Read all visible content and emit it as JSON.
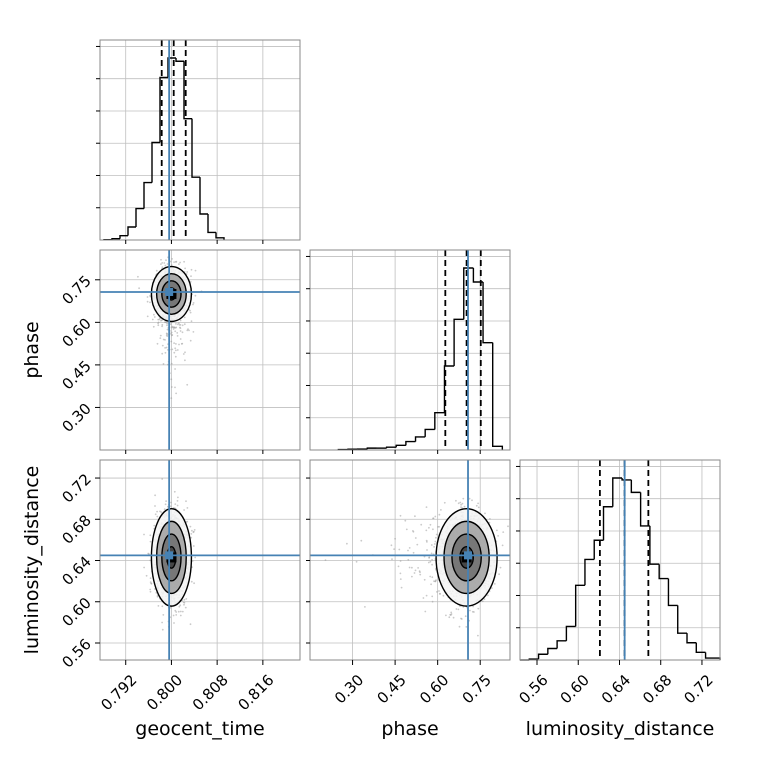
{
  "chart_data": {
    "type": "corner",
    "parameters": [
      "geocent_time",
      "phase",
      "luminosity_distance"
    ],
    "axis_labels": {
      "geocent_time": "geocent_time",
      "phase": "phase",
      "luminosity_distance": "luminosity_distance"
    },
    "truths": {
      "geocent_time": 0.7996,
      "phase": 0.707,
      "luminosity_distance": 0.645
    },
    "ranges": {
      "geocent_time": [
        0.7875,
        0.8225
      ],
      "phase": [
        0.15,
        0.855
      ],
      "luminosity_distance": [
        0.5435,
        0.7375
      ]
    },
    "ticks": {
      "geocent_time": [
        "0.792",
        "0.800",
        "0.808",
        "0.816"
      ],
      "phase": [
        "0.30",
        "0.45",
        "0.60",
        "0.75"
      ],
      "luminosity_distance": [
        "0.56",
        "0.60",
        "0.64",
        "0.68",
        "0.72"
      ]
    },
    "quantiles": {
      "geocent_time": [
        0.7983,
        0.8004,
        0.8025
      ],
      "phase": [
        0.627,
        0.702,
        0.752
      ],
      "luminosity_distance": [
        0.621,
        0.645,
        0.668
      ]
    },
    "histograms": {
      "geocent_time": {
        "edges": [
          0.7882,
          0.7896,
          0.791,
          0.7924,
          0.7938,
          0.7952,
          0.7966,
          0.798,
          0.7994,
          0.8008,
          0.8022,
          0.8036,
          0.805,
          0.8064,
          0.8078,
          0.8092
        ],
        "counts": [
          0.3,
          1.2,
          4.0,
          12,
          29,
          53,
          90,
          150,
          168,
          165,
          112,
          58,
          24,
          7,
          2
        ]
      },
      "phase": {
        "edges": [
          0.25,
          0.284,
          0.318,
          0.352,
          0.386,
          0.42,
          0.454,
          0.488,
          0.522,
          0.556,
          0.59,
          0.624,
          0.658,
          0.692,
          0.726,
          0.76,
          0.794,
          0.828
        ],
        "counts": [
          0.4,
          0.8,
          1,
          2,
          2,
          3,
          5,
          9,
          14,
          22,
          40,
          90,
          140,
          195,
          180,
          115,
          4
        ]
      },
      "luminosity_distance": {
        "edges": [
          0.5435,
          0.5525,
          0.5615,
          0.5705,
          0.5795,
          0.5885,
          0.5975,
          0.6065,
          0.6155,
          0.6245,
          0.6335,
          0.6425,
          0.6515,
          0.6605,
          0.6695,
          0.6785,
          0.6875,
          0.6965,
          0.7055,
          0.7145,
          0.7235,
          0.7375
        ],
        "counts": [
          0,
          1,
          6,
          12,
          20,
          35,
          78,
          105,
          125,
          160,
          190,
          188,
          175,
          140,
          100,
          85,
          57,
          28,
          18,
          8,
          2
        ]
      }
    },
    "density_peaks": {
      "geocent_time|phase": [
        0.8,
        0.7
      ],
      "geocent_time|luminosity_distance": [
        0.8,
        0.643
      ],
      "phase|luminosity_distance": [
        0.702,
        0.643
      ]
    },
    "grid": true,
    "colors": {
      "truth": "#4682b4",
      "hist": "#000000",
      "quantile": "#000000",
      "contour": "#000000",
      "grid": "#bfbfbf",
      "scatter": "#9e9e9e"
    }
  }
}
